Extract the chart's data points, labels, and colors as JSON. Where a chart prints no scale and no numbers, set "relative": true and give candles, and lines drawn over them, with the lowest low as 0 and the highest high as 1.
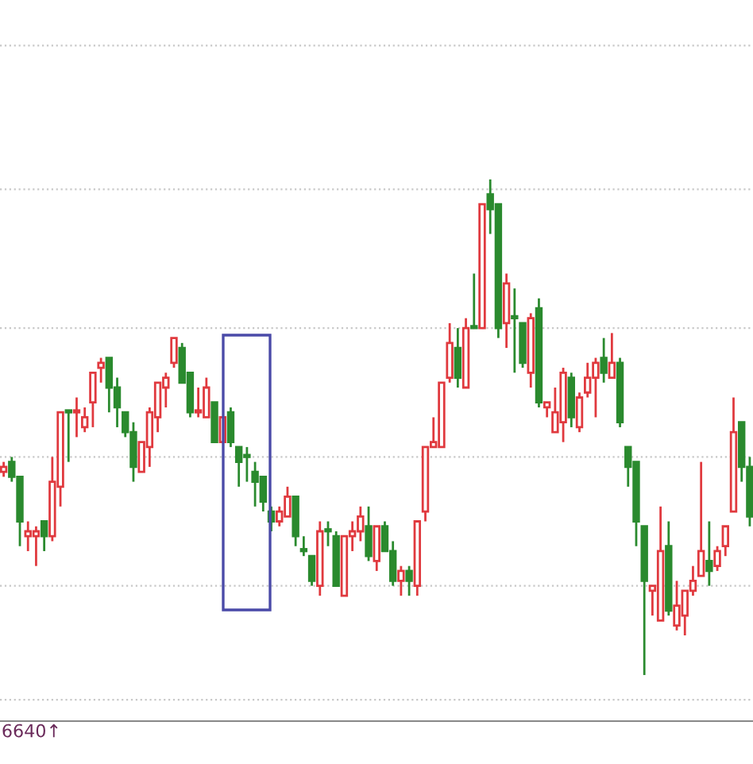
{
  "chart_data": {
    "type": "candlestick",
    "relative": true,
    "categories": [
      null,
      null,
      null,
      null,
      null,
      null,
      null,
      null,
      null,
      null,
      null,
      null,
      null,
      null,
      null,
      null,
      null,
      null,
      null,
      null,
      null,
      null,
      null,
      null,
      null,
      null,
      null,
      null,
      null,
      null,
      null,
      null,
      null,
      null,
      null,
      null,
      null,
      null,
      null,
      null,
      null,
      null,
      null,
      null,
      null,
      null,
      null,
      null,
      null,
      null,
      null,
      null,
      null,
      null,
      null,
      null,
      null,
      null,
      null,
      null,
      null,
      null,
      null,
      null,
      null,
      null,
      null,
      null,
      null,
      null,
      null,
      null,
      null,
      null,
      null,
      null,
      null,
      null,
      null,
      null,
      null,
      null,
      null,
      null,
      null,
      null,
      null,
      null,
      null,
      null,
      null,
      null,
      null
    ],
    "ohlc": [
      [
        0.41,
        0.43,
        0.4,
        0.42
      ],
      [
        0.43,
        0.44,
        0.39,
        0.4
      ],
      [
        0.4,
        0.4,
        0.26,
        0.31
      ],
      [
        0.28,
        0.31,
        0.25,
        0.29
      ],
      [
        0.28,
        0.3,
        0.22,
        0.29
      ],
      [
        0.31,
        0.31,
        0.25,
        0.28
      ],
      [
        0.28,
        0.44,
        0.27,
        0.39
      ],
      [
        0.38,
        0.53,
        0.34,
        0.53
      ],
      [
        0.53,
        0.53,
        0.43,
        0.53
      ],
      [
        0.53,
        0.56,
        0.48,
        0.53
      ],
      [
        0.5,
        0.54,
        0.49,
        0.52
      ],
      [
        0.55,
        0.61,
        0.5,
        0.61
      ],
      [
        0.62,
        0.64,
        0.59,
        0.63
      ],
      [
        0.64,
        0.64,
        0.53,
        0.58
      ],
      [
        0.58,
        0.6,
        0.5,
        0.54
      ],
      [
        0.53,
        0.53,
        0.48,
        0.49
      ],
      [
        0.49,
        0.51,
        0.39,
        0.42
      ],
      [
        0.41,
        0.47,
        0.41,
        0.47
      ],
      [
        0.46,
        0.54,
        0.42,
        0.53
      ],
      [
        0.52,
        0.59,
        0.49,
        0.59
      ],
      [
        0.58,
        0.61,
        0.54,
        0.6
      ],
      [
        0.63,
        0.68,
        0.62,
        0.68
      ],
      [
        0.66,
        0.67,
        0.59,
        0.59
      ],
      [
        0.61,
        0.61,
        0.52,
        0.53
      ],
      [
        0.53,
        0.58,
        0.52,
        0.53
      ],
      [
        0.52,
        0.6,
        0.52,
        0.58
      ],
      [
        0.55,
        0.55,
        0.47,
        0.47
      ],
      [
        0.47,
        0.52,
        0.47,
        0.52
      ],
      [
        0.53,
        0.54,
        0.46,
        0.47
      ],
      [
        0.46,
        0.46,
        0.38,
        0.43
      ],
      [
        0.44,
        0.46,
        0.39,
        0.44
      ],
      [
        0.41,
        0.43,
        0.34,
        0.39
      ],
      [
        0.4,
        0.4,
        0.33,
        0.35
      ],
      [
        0.33,
        0.34,
        0.29,
        0.31
      ],
      [
        0.31,
        0.34,
        0.3,
        0.33
      ],
      [
        0.32,
        0.38,
        0.32,
        0.36
      ],
      [
        0.36,
        0.36,
        0.26,
        0.28
      ],
      [
        0.25,
        0.28,
        0.24,
        0.25
      ],
      [
        0.24,
        0.24,
        0.18,
        0.19
      ],
      [
        0.18,
        0.31,
        0.16,
        0.29
      ],
      [
        0.29,
        0.31,
        0.26,
        0.29
      ],
      [
        0.28,
        0.29,
        0.18,
        0.18
      ],
      [
        0.16,
        0.28,
        0.16,
        0.28
      ],
      [
        0.28,
        0.31,
        0.25,
        0.29
      ],
      [
        0.29,
        0.34,
        0.27,
        0.32
      ],
      [
        0.3,
        0.34,
        0.23,
        0.24
      ],
      [
        0.23,
        0.3,
        0.21,
        0.3
      ],
      [
        0.3,
        0.31,
        0.25,
        0.25
      ],
      [
        0.25,
        0.27,
        0.18,
        0.19
      ],
      [
        0.19,
        0.22,
        0.16,
        0.21
      ],
      [
        0.21,
        0.22,
        0.16,
        0.19
      ],
      [
        0.18,
        0.31,
        0.16,
        0.31
      ],
      [
        0.33,
        0.46,
        0.31,
        0.46
      ],
      [
        0.46,
        0.52,
        0.46,
        0.47
      ],
      [
        0.46,
        0.59,
        0.46,
        0.59
      ],
      [
        0.6,
        0.71,
        0.59,
        0.67
      ],
      [
        0.66,
        0.7,
        0.58,
        0.6
      ],
      [
        0.58,
        0.72,
        0.58,
        0.7
      ],
      [
        0.7,
        0.81,
        0.7,
        0.7
      ],
      [
        0.7,
        0.95,
        0.7,
        0.95
      ],
      [
        0.97,
        1.0,
        0.89,
        0.94
      ],
      [
        0.95,
        0.95,
        0.68,
        0.7
      ],
      [
        0.71,
        0.81,
        0.66,
        0.79
      ],
      [
        0.72,
        0.78,
        0.61,
        0.72
      ],
      [
        0.71,
        0.71,
        0.62,
        0.63
      ],
      [
        0.61,
        0.73,
        0.58,
        0.72
      ],
      [
        0.74,
        0.76,
        0.54,
        0.55
      ],
      [
        0.54,
        0.55,
        0.52,
        0.55
      ],
      [
        0.49,
        0.58,
        0.49,
        0.53
      ],
      [
        0.51,
        0.62,
        0.47,
        0.61
      ],
      [
        0.6,
        0.61,
        0.5,
        0.52
      ],
      [
        0.5,
        0.57,
        0.49,
        0.56
      ],
      [
        0.57,
        0.63,
        0.56,
        0.6
      ],
      [
        0.6,
        0.64,
        0.52,
        0.63
      ],
      [
        0.64,
        0.68,
        0.59,
        0.61
      ],
      [
        0.6,
        0.69,
        0.6,
        0.63
      ],
      [
        0.63,
        0.64,
        0.5,
        0.51
      ],
      [
        0.46,
        0.46,
        0.38,
        0.42
      ],
      [
        0.43,
        0.43,
        0.26,
        0.31
      ],
      [
        0.3,
        0.3,
        0.0,
        0.19
      ],
      [
        0.17,
        0.18,
        0.12,
        0.18
      ],
      [
        0.11,
        0.34,
        0.11,
        0.25
      ],
      [
        0.26,
        0.31,
        0.12,
        0.13
      ],
      [
        0.1,
        0.19,
        0.09,
        0.14
      ],
      [
        0.12,
        0.17,
        0.08,
        0.17
      ],
      [
        0.17,
        0.22,
        0.16,
        0.19
      ],
      [
        0.2,
        0.43,
        0.2,
        0.25
      ],
      [
        0.23,
        0.31,
        0.18,
        0.21
      ],
      [
        0.22,
        0.26,
        0.21,
        0.25
      ],
      [
        0.26,
        0.3,
        0.24,
        0.3
      ],
      [
        0.33,
        0.56,
        0.33,
        0.49
      ],
      [
        0.51,
        0.51,
        0.39,
        0.42
      ],
      [
        0.42,
        0.44,
        0.3,
        0.32
      ]
    ],
    "colors": [
      "#e0393e",
      "#2a8a2e",
      "#2a8a2e",
      "#e0393e",
      "#e0393e",
      "#2a8a2e",
      "#e0393e",
      "#e0393e",
      "#2a8a2e",
      "#e0393e",
      "#e0393e",
      "#e0393e",
      "#e0393e",
      "#2a8a2e",
      "#2a8a2e",
      "#2a8a2e",
      "#2a8a2e",
      "#e0393e",
      "#e0393e",
      "#e0393e",
      "#e0393e",
      "#e0393e",
      "#2a8a2e",
      "#2a8a2e",
      "#e0393e",
      "#e0393e",
      "#2a8a2e",
      "#e0393e",
      "#2a8a2e",
      "#2a8a2e",
      "#2a8a2e",
      "#2a8a2e",
      "#2a8a2e",
      "#2a8a2e",
      "#e0393e",
      "#e0393e",
      "#2a8a2e",
      "#2a8a2e",
      "#2a8a2e",
      "#e0393e",
      "#2a8a2e",
      "#2a8a2e",
      "#e0393e",
      "#e0393e",
      "#e0393e",
      "#2a8a2e",
      "#e0393e",
      "#2a8a2e",
      "#2a8a2e",
      "#e0393e",
      "#2a8a2e",
      "#e0393e",
      "#e0393e",
      "#e0393e",
      "#e0393e",
      "#e0393e",
      "#2a8a2e",
      "#e0393e",
      "#2a8a2e",
      "#e0393e",
      "#2a8a2e",
      "#2a8a2e",
      "#e0393e",
      "#2a8a2e",
      "#2a8a2e",
      "#e0393e",
      "#2a8a2e",
      "#e0393e",
      "#e0393e",
      "#e0393e",
      "#2a8a2e",
      "#e0393e",
      "#e0393e",
      "#e0393e",
      "#2a8a2e",
      "#e0393e",
      "#2a8a2e",
      "#2a8a2e",
      "#2a8a2e",
      "#2a8a2e",
      "#e0393e",
      "#e0393e",
      "#2a8a2e",
      "#e0393e",
      "#e0393e",
      "#e0393e",
      "#e0393e",
      "#2a8a2e",
      "#e0393e",
      "#e0393e",
      "#e0393e",
      "#2a8a2e",
      "#2a8a2e"
    ],
    "ref_lines": [
      {
        "axis": "y",
        "value": 1.27,
        "color": "#c8c8c8",
        "line_style": "dotted"
      },
      {
        "axis": "y",
        "value": 0.98,
        "color": "#c8c8c8",
        "line_style": "dotted"
      },
      {
        "axis": "y",
        "value": 0.7,
        "color": "#c8c8c8",
        "line_style": "dotted"
      },
      {
        "axis": "y",
        "value": 0.44,
        "color": "#c8c8c8",
        "line_style": "dotted"
      },
      {
        "axis": "y",
        "value": 0.18,
        "color": "#c8c8c8",
        "line_style": "dotted"
      },
      {
        "axis": "y",
        "value": -0.05,
        "color": "#c8c8c8",
        "line_style": "dotted"
      }
    ],
    "annotations": [
      "6640↑"
    ]
  }
}
